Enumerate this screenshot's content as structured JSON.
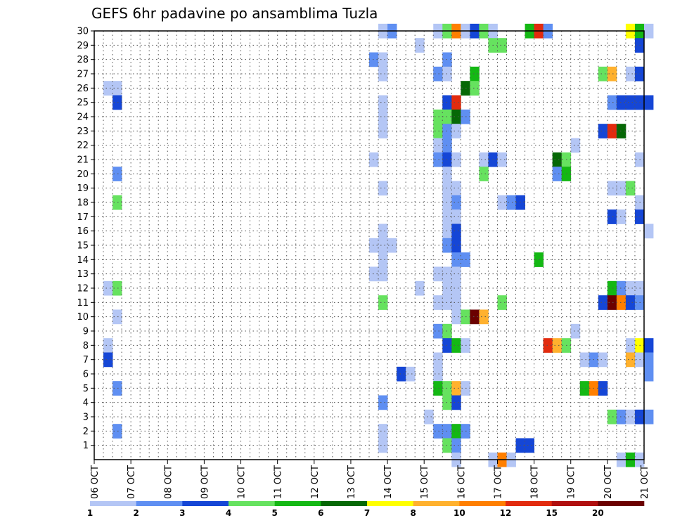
{
  "chart_data": {
    "type": "heatmap",
    "title": "GEFS 6hr padavine po ansamblima Tuzla",
    "y_labels": [
      "1",
      "2",
      "3",
      "4",
      "5",
      "6",
      "7",
      "8",
      "9",
      "10",
      "11",
      "12",
      "13",
      "14",
      "15",
      "16",
      "17",
      "18",
      "19",
      "20",
      "21",
      "22",
      "23",
      "24",
      "25",
      "26",
      "27",
      "28",
      "29",
      "30"
    ],
    "x_labels": [
      "06 OCT",
      "07 OCT",
      "08 OCT",
      "09 OCT",
      "10 OCT",
      "11 OCT",
      "12 OCT",
      "13 OCT",
      "14 OCT",
      "15 OCT",
      "16 OCT",
      "17 OCT",
      "18 OCT",
      "19 OCT",
      "20 OCT",
      "21 OCT"
    ],
    "x_range_days": [
      0,
      15
    ],
    "y_range": [
      0,
      30
    ],
    "grid": true,
    "legend_placement": "bottom",
    "legend_colors": [
      "#b4c6f5",
      "#5f8ff2",
      "#1546d6",
      "#66e25f",
      "#14b814",
      "#066806",
      "#ffff00",
      "#ffb12e",
      "#ff7f00",
      "#e22b0e",
      "#b00f0f",
      "#6b0000"
    ],
    "legend_ticks": [
      "1",
      "2",
      "3",
      "4",
      "5",
      "6",
      "7",
      "8",
      "10",
      "12",
      "15",
      "20"
    ],
    "cells": [
      {
        "member": 30,
        "step": 31,
        "c": 1
      },
      {
        "member": 30,
        "step": 32,
        "c": 2
      },
      {
        "member": 30,
        "step": 37,
        "c": 1
      },
      {
        "member": 30,
        "step": 38,
        "c": 4
      },
      {
        "member": 30,
        "step": 39,
        "c": 9
      },
      {
        "member": 30,
        "step": 40,
        "c": 1
      },
      {
        "member": 30,
        "step": 41,
        "c": 3
      },
      {
        "member": 30,
        "step": 42,
        "c": 4
      },
      {
        "member": 30,
        "step": 43,
        "c": 1
      },
      {
        "member": 30,
        "step": 47,
        "c": 5
      },
      {
        "member": 30,
        "step": 48,
        "c": 10
      },
      {
        "member": 30,
        "step": 49,
        "c": 2
      },
      {
        "member": 30,
        "step": 58,
        "c": 7
      },
      {
        "member": 30,
        "step": 59,
        "c": 5
      },
      {
        "member": 30,
        "step": 60,
        "c": 1
      },
      {
        "member": 29,
        "step": 35,
        "c": 1
      },
      {
        "member": 29,
        "step": 43,
        "c": 4
      },
      {
        "member": 29,
        "step": 44,
        "c": 4
      },
      {
        "member": 29,
        "step": 59,
        "c": 3
      },
      {
        "member": 28,
        "step": 30,
        "c": 2
      },
      {
        "member": 28,
        "step": 31,
        "c": 1
      },
      {
        "member": 28,
        "step": 38,
        "c": 2
      },
      {
        "member": 27,
        "step": 31,
        "c": 1
      },
      {
        "member": 27,
        "step": 37,
        "c": 2
      },
      {
        "member": 27,
        "step": 38,
        "c": 1
      },
      {
        "member": 27,
        "step": 41,
        "c": 5
      },
      {
        "member": 27,
        "step": 55,
        "c": 4
      },
      {
        "member": 27,
        "step": 56,
        "c": 8
      },
      {
        "member": 27,
        "step": 58,
        "c": 1
      },
      {
        "member": 27,
        "step": 59,
        "c": 3
      },
      {
        "member": 26,
        "step": 1,
        "c": 1
      },
      {
        "member": 26,
        "step": 2,
        "c": 1
      },
      {
        "member": 26,
        "step": 40,
        "c": 6
      },
      {
        "member": 26,
        "step": 41,
        "c": 4
      },
      {
        "member": 25,
        "step": 2,
        "c": 3
      },
      {
        "member": 25,
        "step": 31,
        "c": 1
      },
      {
        "member": 25,
        "step": 38,
        "c": 3
      },
      {
        "member": 25,
        "step": 39,
        "c": 10
      },
      {
        "member": 25,
        "step": 56,
        "c": 2
      },
      {
        "member": 25,
        "step": 57,
        "c": 3
      },
      {
        "member": 25,
        "step": 58,
        "c": 3
      },
      {
        "member": 25,
        "step": 59,
        "c": 3
      },
      {
        "member": 25,
        "step": 60,
        "c": 3
      },
      {
        "member": 24,
        "step": 31,
        "c": 1
      },
      {
        "member": 24,
        "step": 37,
        "c": 4
      },
      {
        "member": 24,
        "step": 38,
        "c": 4
      },
      {
        "member": 24,
        "step": 39,
        "c": 6
      },
      {
        "member": 24,
        "step": 40,
        "c": 2
      },
      {
        "member": 23,
        "step": 31,
        "c": 1
      },
      {
        "member": 23,
        "step": 37,
        "c": 4
      },
      {
        "member": 23,
        "step": 38,
        "c": 2
      },
      {
        "member": 23,
        "step": 39,
        "c": 1
      },
      {
        "member": 23,
        "step": 55,
        "c": 3
      },
      {
        "member": 23,
        "step": 56,
        "c": 10
      },
      {
        "member": 23,
        "step": 57,
        "c": 6
      },
      {
        "member": 22,
        "step": 37,
        "c": 1
      },
      {
        "member": 22,
        "step": 38,
        "c": 2
      },
      {
        "member": 22,
        "step": 52,
        "c": 1
      },
      {
        "member": 21,
        "step": 30,
        "c": 1
      },
      {
        "member": 21,
        "step": 37,
        "c": 2
      },
      {
        "member": 21,
        "step": 38,
        "c": 3
      },
      {
        "member": 21,
        "step": 39,
        "c": 1
      },
      {
        "member": 21,
        "step": 42,
        "c": 1
      },
      {
        "member": 21,
        "step": 43,
        "c": 3
      },
      {
        "member": 21,
        "step": 44,
        "c": 1
      },
      {
        "member": 21,
        "step": 50,
        "c": 6
      },
      {
        "member": 21,
        "step": 51,
        "c": 4
      },
      {
        "member": 21,
        "step": 59,
        "c": 1
      },
      {
        "member": 20,
        "step": 2,
        "c": 2
      },
      {
        "member": 20,
        "step": 38,
        "c": 1
      },
      {
        "member": 20,
        "step": 42,
        "c": 4
      },
      {
        "member": 20,
        "step": 50,
        "c": 2
      },
      {
        "member": 20,
        "step": 51,
        "c": 5
      },
      {
        "member": 19,
        "step": 31,
        "c": 1
      },
      {
        "member": 19,
        "step": 38,
        "c": 1
      },
      {
        "member": 19,
        "step": 39,
        "c": 1
      },
      {
        "member": 19,
        "step": 56,
        "c": 1
      },
      {
        "member": 19,
        "step": 57,
        "c": 1
      },
      {
        "member": 19,
        "step": 58,
        "c": 4
      },
      {
        "member": 18,
        "step": 2,
        "c": 4
      },
      {
        "member": 18,
        "step": 38,
        "c": 1
      },
      {
        "member": 18,
        "step": 39,
        "c": 2
      },
      {
        "member": 18,
        "step": 44,
        "c": 1
      },
      {
        "member": 18,
        "step": 45,
        "c": 2
      },
      {
        "member": 18,
        "step": 46,
        "c": 3
      },
      {
        "member": 18,
        "step": 59,
        "c": 1
      },
      {
        "member": 17,
        "step": 38,
        "c": 1
      },
      {
        "member": 17,
        "step": 39,
        "c": 1
      },
      {
        "member": 17,
        "step": 56,
        "c": 3
      },
      {
        "member": 17,
        "step": 57,
        "c": 1
      },
      {
        "member": 17,
        "step": 59,
        "c": 3
      },
      {
        "member": 16,
        "step": 31,
        "c": 1
      },
      {
        "member": 16,
        "step": 38,
        "c": 1
      },
      {
        "member": 16,
        "step": 39,
        "c": 3
      },
      {
        "member": 16,
        "step": 60,
        "c": 1
      },
      {
        "member": 15,
        "step": 30,
        "c": 1
      },
      {
        "member": 15,
        "step": 31,
        "c": 1
      },
      {
        "member": 15,
        "step": 32,
        "c": 1
      },
      {
        "member": 15,
        "step": 38,
        "c": 2
      },
      {
        "member": 15,
        "step": 39,
        "c": 3
      },
      {
        "member": 14,
        "step": 31,
        "c": 1
      },
      {
        "member": 14,
        "step": 39,
        "c": 2
      },
      {
        "member": 14,
        "step": 40,
        "c": 2
      },
      {
        "member": 14,
        "step": 48,
        "c": 5
      },
      {
        "member": 13,
        "step": 30,
        "c": 1
      },
      {
        "member": 13,
        "step": 31,
        "c": 1
      },
      {
        "member": 13,
        "step": 37,
        "c": 1
      },
      {
        "member": 13,
        "step": 38,
        "c": 1
      },
      {
        "member": 13,
        "step": 39,
        "c": 1
      },
      {
        "member": 12,
        "step": 1,
        "c": 1
      },
      {
        "member": 12,
        "step": 2,
        "c": 4
      },
      {
        "member": 12,
        "step": 35,
        "c": 1
      },
      {
        "member": 12,
        "step": 38,
        "c": 1
      },
      {
        "member": 12,
        "step": 39,
        "c": 1
      },
      {
        "member": 12,
        "step": 56,
        "c": 5
      },
      {
        "member": 12,
        "step": 57,
        "c": 2
      },
      {
        "member": 12,
        "step": 58,
        "c": 1
      },
      {
        "member": 12,
        "step": 59,
        "c": 1
      },
      {
        "member": 11,
        "step": 31,
        "c": 4
      },
      {
        "member": 11,
        "step": 37,
        "c": 1
      },
      {
        "member": 11,
        "step": 38,
        "c": 1
      },
      {
        "member": 11,
        "step": 39,
        "c": 1
      },
      {
        "member": 11,
        "step": 44,
        "c": 4
      },
      {
        "member": 11,
        "step": 55,
        "c": 3
      },
      {
        "member": 11,
        "step": 56,
        "c": 12
      },
      {
        "member": 11,
        "step": 57,
        "c": 9
      },
      {
        "member": 11,
        "step": 58,
        "c": 3
      },
      {
        "member": 11,
        "step": 59,
        "c": 2
      },
      {
        "member": 10,
        "step": 2,
        "c": 1
      },
      {
        "member": 10,
        "step": 39,
        "c": 1
      },
      {
        "member": 10,
        "step": 40,
        "c": 4
      },
      {
        "member": 10,
        "step": 41,
        "c": 12
      },
      {
        "member": 10,
        "step": 42,
        "c": 8
      },
      {
        "member": 9,
        "step": 37,
        "c": 2
      },
      {
        "member": 9,
        "step": 38,
        "c": 4
      },
      {
        "member": 9,
        "step": 52,
        "c": 1
      },
      {
        "member": 8,
        "step": 1,
        "c": 1
      },
      {
        "member": 8,
        "step": 38,
        "c": 3
      },
      {
        "member": 8,
        "step": 39,
        "c": 5
      },
      {
        "member": 8,
        "step": 40,
        "c": 1
      },
      {
        "member": 8,
        "step": 49,
        "c": 10
      },
      {
        "member": 8,
        "step": 50,
        "c": 8
      },
      {
        "member": 8,
        "step": 51,
        "c": 4
      },
      {
        "member": 8,
        "step": 58,
        "c": 1
      },
      {
        "member": 8,
        "step": 59,
        "c": 7
      },
      {
        "member": 8,
        "step": 60,
        "c": 3
      },
      {
        "member": 7,
        "step": 1,
        "c": 3
      },
      {
        "member": 7,
        "step": 37,
        "c": 1
      },
      {
        "member": 7,
        "step": 53,
        "c": 1
      },
      {
        "member": 7,
        "step": 54,
        "c": 2
      },
      {
        "member": 7,
        "step": 55,
        "c": 1
      },
      {
        "member": 7,
        "step": 58,
        "c": 8
      },
      {
        "member": 7,
        "step": 59,
        "c": 1
      },
      {
        "member": 7,
        "step": 60,
        "c": 2
      },
      {
        "member": 6,
        "step": 33,
        "c": 3
      },
      {
        "member": 6,
        "step": 34,
        "c": 1
      },
      {
        "member": 6,
        "step": 37,
        "c": 1
      },
      {
        "member": 6,
        "step": 60,
        "c": 2
      },
      {
        "member": 5,
        "step": 2,
        "c": 2
      },
      {
        "member": 5,
        "step": 37,
        "c": 5
      },
      {
        "member": 5,
        "step": 38,
        "c": 4
      },
      {
        "member": 5,
        "step": 39,
        "c": 8
      },
      {
        "member": 5,
        "step": 40,
        "c": 1
      },
      {
        "member": 5,
        "step": 53,
        "c": 5
      },
      {
        "member": 5,
        "step": 54,
        "c": 9
      },
      {
        "member": 5,
        "step": 55,
        "c": 3
      },
      {
        "member": 4,
        "step": 31,
        "c": 2
      },
      {
        "member": 4,
        "step": 38,
        "c": 4
      },
      {
        "member": 4,
        "step": 39,
        "c": 3
      },
      {
        "member": 3,
        "step": 36,
        "c": 1
      },
      {
        "member": 3,
        "step": 56,
        "c": 4
      },
      {
        "member": 3,
        "step": 57,
        "c": 2
      },
      {
        "member": 3,
        "step": 58,
        "c": 1
      },
      {
        "member": 3,
        "step": 59,
        "c": 3
      },
      {
        "member": 3,
        "step": 60,
        "c": 2
      },
      {
        "member": 2,
        "step": 2,
        "c": 2
      },
      {
        "member": 2,
        "step": 31,
        "c": 1
      },
      {
        "member": 2,
        "step": 37,
        "c": 2
      },
      {
        "member": 2,
        "step": 38,
        "c": 2
      },
      {
        "member": 2,
        "step": 39,
        "c": 5
      },
      {
        "member": 2,
        "step": 40,
        "c": 2
      },
      {
        "member": 1,
        "step": 31,
        "c": 1
      },
      {
        "member": 1,
        "step": 38,
        "c": 4
      },
      {
        "member": 1,
        "step": 39,
        "c": 2
      },
      {
        "member": 1,
        "step": 46,
        "c": 3
      },
      {
        "member": 1,
        "step": 47,
        "c": 3
      },
      {
        "member": 0,
        "step": 39,
        "c": 1
      },
      {
        "member": 0,
        "step": 43,
        "c": 1
      },
      {
        "member": 0,
        "step": 44,
        "c": 9
      },
      {
        "member": 0,
        "step": 45,
        "c": 1
      },
      {
        "member": 0,
        "step": 57,
        "c": 1
      },
      {
        "member": 0,
        "step": 58,
        "c": 5
      },
      {
        "member": 0,
        "step": 59,
        "c": 1
      }
    ]
  }
}
